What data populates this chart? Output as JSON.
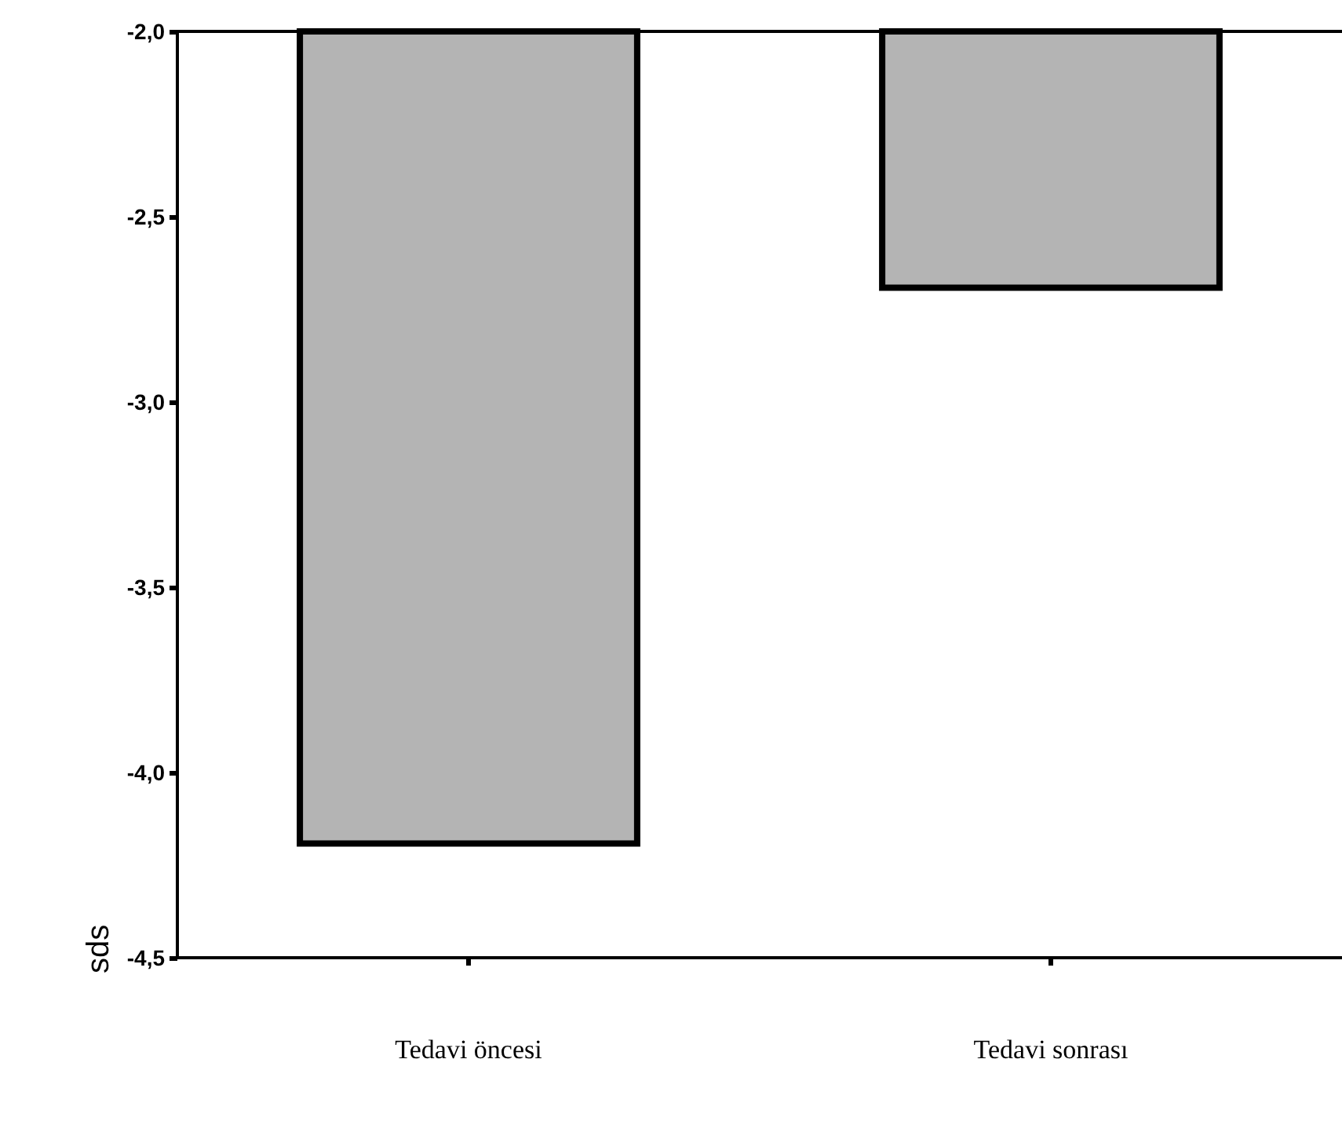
{
  "chart_data": {
    "type": "bar",
    "categories": [
      "Tedavi öncesi",
      "Tedavi sonrası"
    ],
    "values": [
      -4.2,
      -2.7
    ],
    "color": "#b4b4b4",
    "ylabel": "sds",
    "ylim": [
      -4.5,
      -2.0
    ],
    "yticks": [
      {
        "value": -4.5,
        "label": "-4,5"
      },
      {
        "value": -4.0,
        "label": "-4,0"
      },
      {
        "value": -3.5,
        "label": "-3,5"
      },
      {
        "value": -3.0,
        "label": "-3,0"
      },
      {
        "value": -2.5,
        "label": "-2,5"
      },
      {
        "value": -2.0,
        "label": "-2,0"
      }
    ],
    "grid": false
  }
}
